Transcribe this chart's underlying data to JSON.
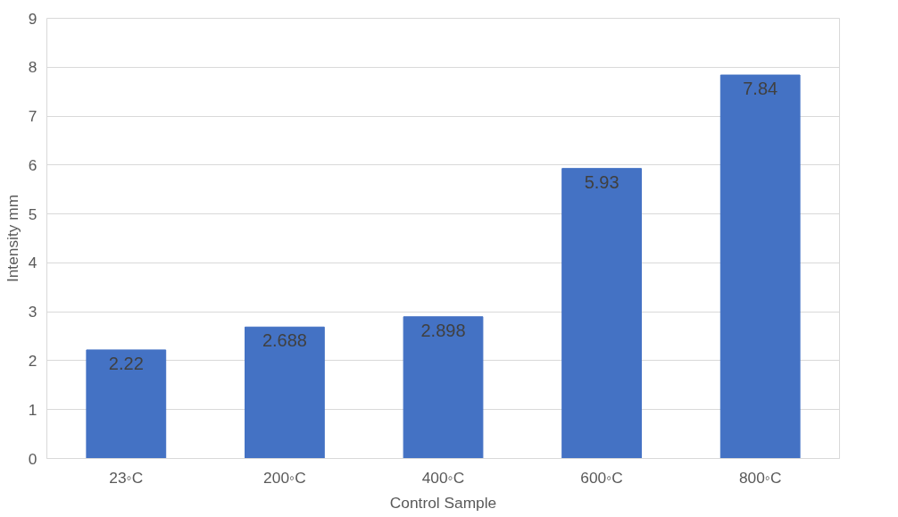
{
  "chart_data": {
    "type": "bar",
    "xlabel": "Control Sample",
    "ylabel": "Intensity mm",
    "categories": [
      "23◦C",
      "200◦C",
      "400◦C",
      "600◦C",
      "800◦C"
    ],
    "values": [
      2.22,
      2.688,
      2.898,
      5.93,
      7.84
    ],
    "color": "#4472c4",
    "value_labels": [
      "2.22",
      "2.688",
      "2.898",
      "5.93",
      "7.84"
    ],
    "ylim": [
      0,
      9
    ],
    "yticks": [
      0,
      1,
      2,
      3,
      4,
      5,
      6,
      7,
      8,
      9
    ],
    "grid": "y"
  }
}
